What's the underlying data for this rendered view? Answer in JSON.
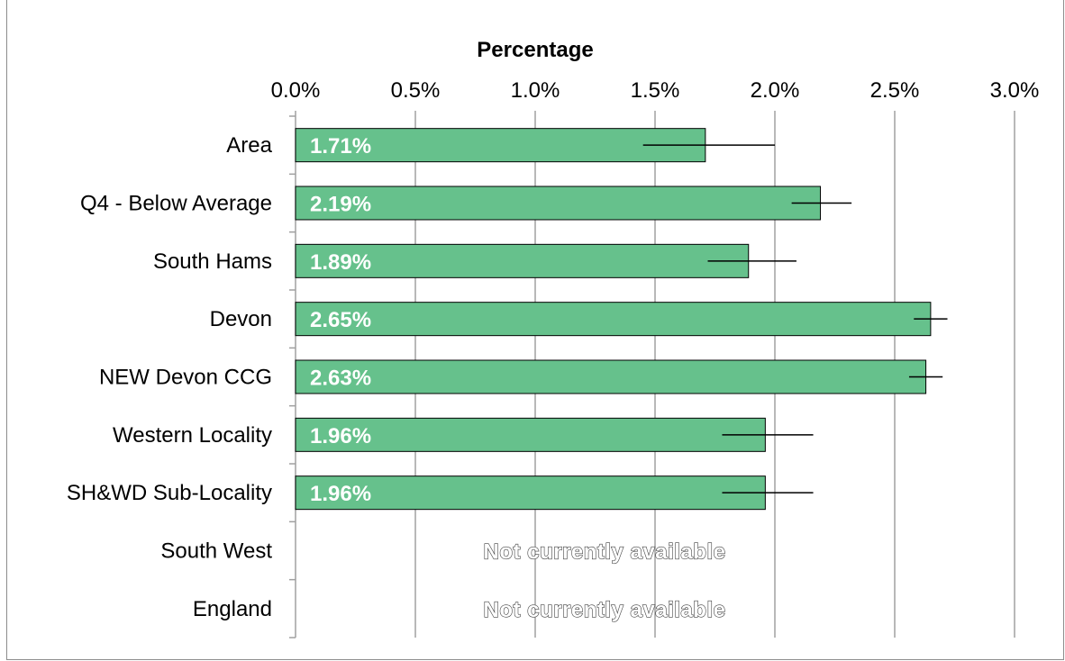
{
  "chart_data": {
    "type": "bar",
    "orientation": "horizontal",
    "xlabel": "Percentage",
    "xlim": [
      0,
      3
    ],
    "x_ticks": [
      "0.0%",
      "0.5%",
      "1.0%",
      "1.5%",
      "2.0%",
      "2.5%",
      "3.0%"
    ],
    "x_tick_values": [
      0,
      0.5,
      1.0,
      1.5,
      2.0,
      2.5,
      3.0
    ],
    "grid": true,
    "categories": [
      "Area",
      "Q4 - Below Average",
      "South Hams",
      "Devon",
      "NEW Devon CCG",
      "Western Locality",
      "SH&WD Sub-Locality",
      "South West",
      "England"
    ],
    "values": [
      1.71,
      2.19,
      1.89,
      2.65,
      2.63,
      1.96,
      1.96,
      null,
      null
    ],
    "value_labels": [
      "1.71%",
      "2.19%",
      "1.89%",
      "2.65%",
      "2.63%",
      "1.96%",
      "1.96%",
      "Not currently available",
      "Not currently available"
    ],
    "error_low": [
      1.45,
      2.07,
      1.72,
      2.58,
      2.56,
      1.78,
      1.78,
      null,
      null
    ],
    "error_high": [
      2.0,
      2.32,
      2.09,
      2.72,
      2.7,
      2.16,
      2.16,
      null,
      null
    ],
    "colors": {
      "bar": "#66c18c",
      "bar_border": "#000000",
      "grid": "#a0a0a0",
      "frame": "#8c8c8c"
    }
  }
}
